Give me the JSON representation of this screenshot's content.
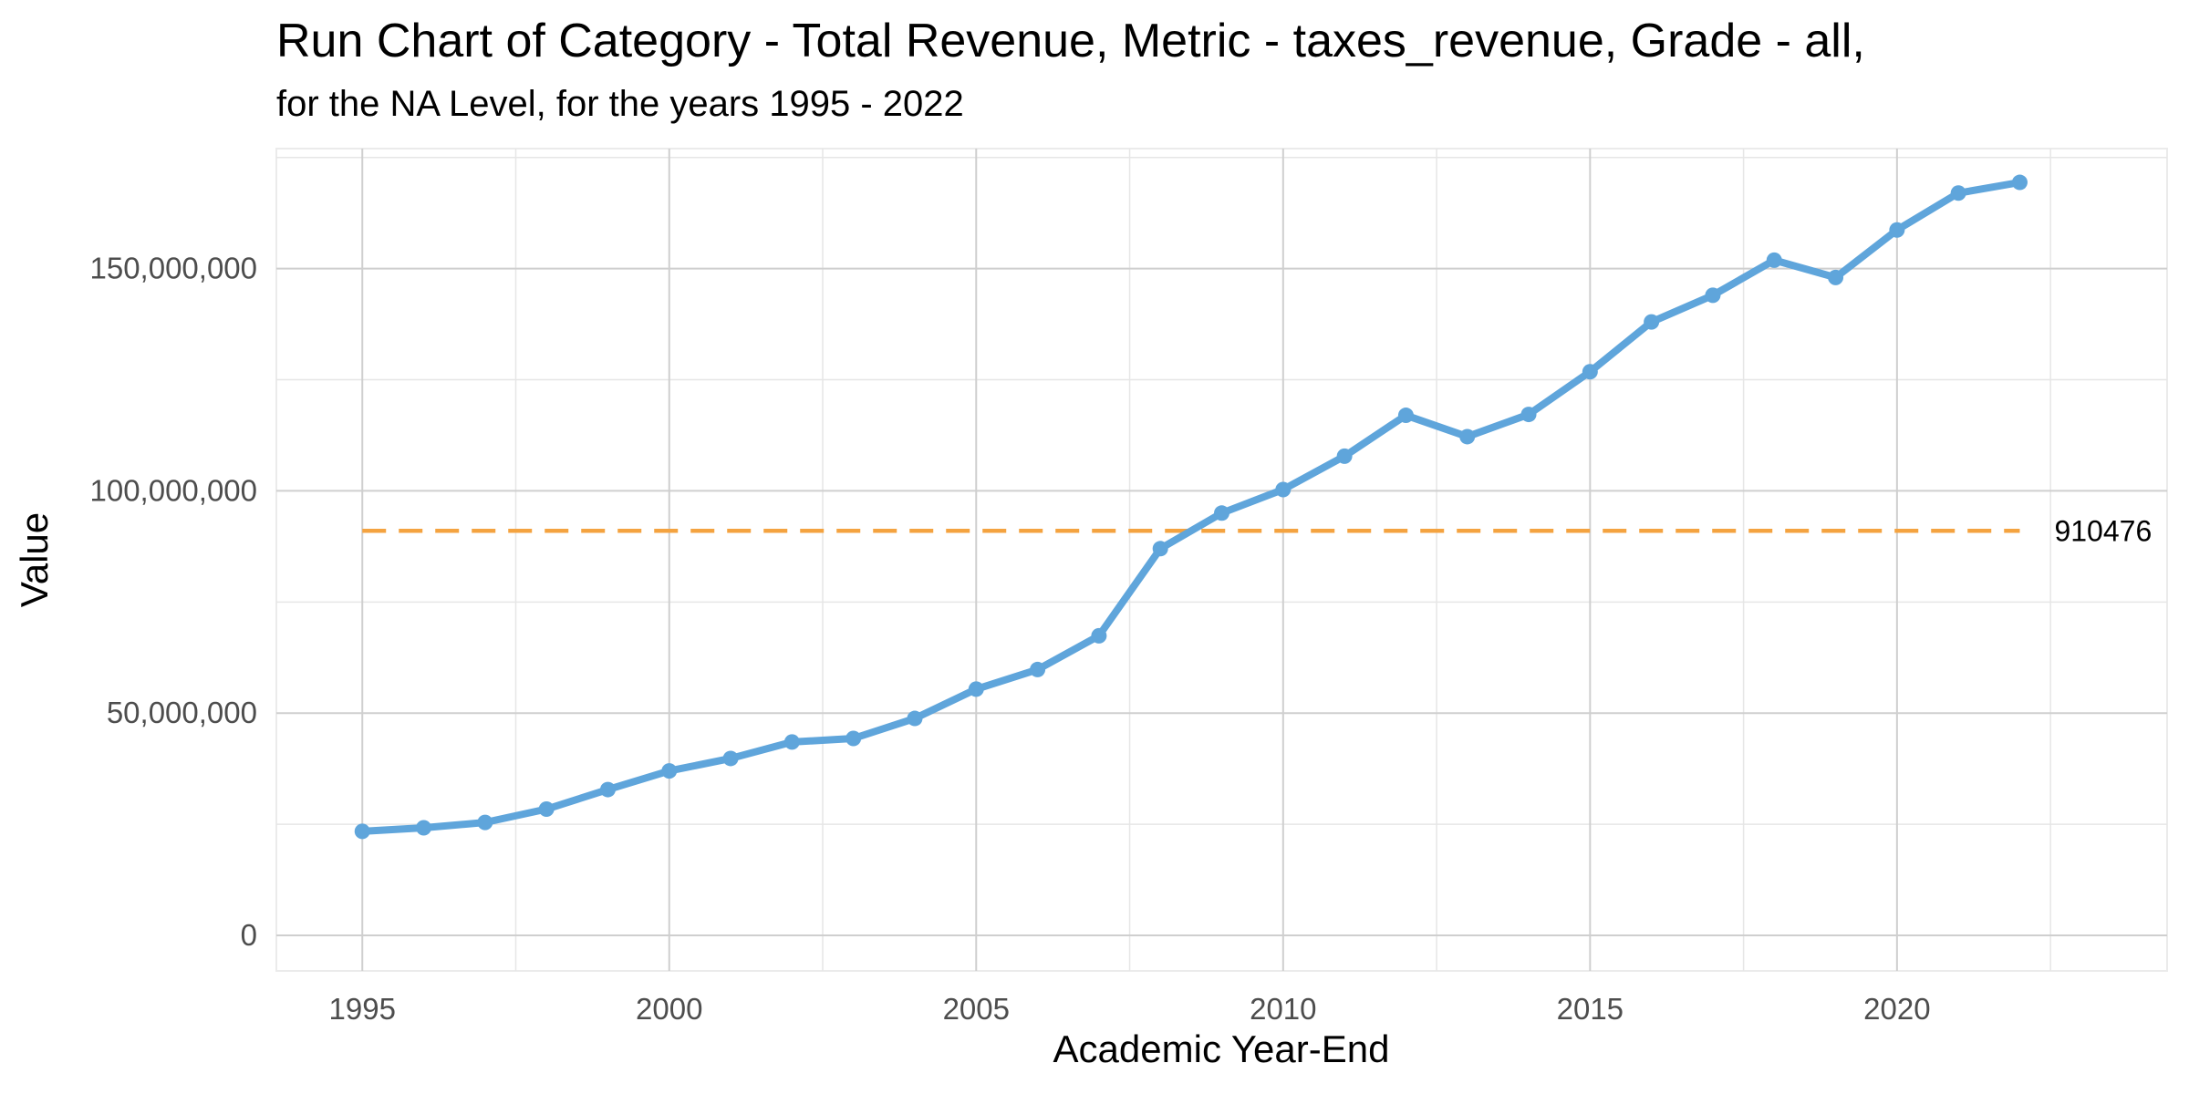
{
  "chart_data": {
    "type": "line",
    "title": "Run Chart of Category - Total Revenue, Metric - taxes_revenue, Grade - all,",
    "subtitle": "for the NA Level, for the years 1995 - 2022",
    "xlabel": "Academic Year-End",
    "ylabel": "Value",
    "x_ticks": [
      1995,
      2000,
      2005,
      2010,
      2015,
      2020
    ],
    "y_ticks": [
      0,
      50000000,
      100000000,
      150000000
    ],
    "y_tick_labels": [
      "0",
      "50,000,000",
      "100,000,000",
      "150,000,000"
    ],
    "xlim": [
      1993.6,
      2024.4
    ],
    "ylim": [
      -8000000,
      177000000
    ],
    "grid": true,
    "legend": "none",
    "series": [
      {
        "color": "#5fa5db",
        "x": [
          1995,
          1996,
          1997,
          1998,
          1999,
          2000,
          2001,
          2002,
          2003,
          2004,
          2005,
          2006,
          2007,
          2008,
          2009,
          2010,
          2011,
          2012,
          2013,
          2014,
          2015,
          2016,
          2017,
          2018,
          2019,
          2020,
          2021,
          2022
        ],
        "values": [
          23400000,
          24200000,
          25400000,
          28400000,
          32800000,
          37000000,
          39800000,
          43500000,
          44300000,
          48800000,
          55400000,
          59800000,
          67400000,
          87000000,
          95000000,
          100300000,
          107800000,
          117000000,
          112200000,
          117200000,
          126800000,
          138000000,
          144000000,
          151900000,
          148000000,
          158700000,
          167000000,
          169400000
        ]
      }
    ],
    "reference_line": {
      "value": 91000000,
      "label": "910476",
      "color": "#f4a340",
      "style": "dashed"
    }
  }
}
